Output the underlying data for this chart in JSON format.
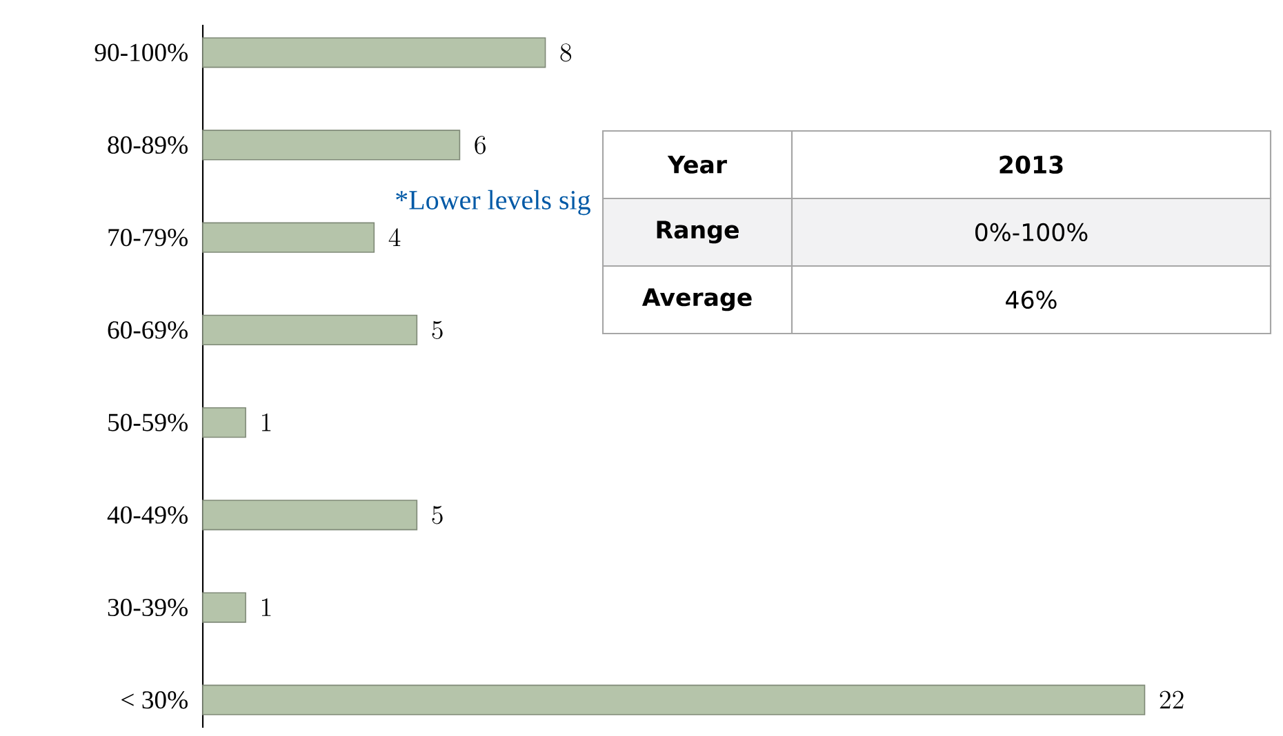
{
  "chart_data": {
    "type": "bar",
    "orientation": "horizontal",
    "data_labels": true,
    "color": "#b5c4aa",
    "categories": [
      "90-100%",
      "80-89%",
      "70-79%",
      "60-69%",
      "50-59%",
      "40-49%",
      "30-39%",
      "< 30%"
    ],
    "values": [
      8,
      6,
      4,
      5,
      1,
      5,
      1,
      22
    ],
    "annotations": [
      "*Lower levels sig",
      "Year",
      "2013",
      "Range",
      "0%-100%",
      "Average",
      "46%"
    ]
  }
}
